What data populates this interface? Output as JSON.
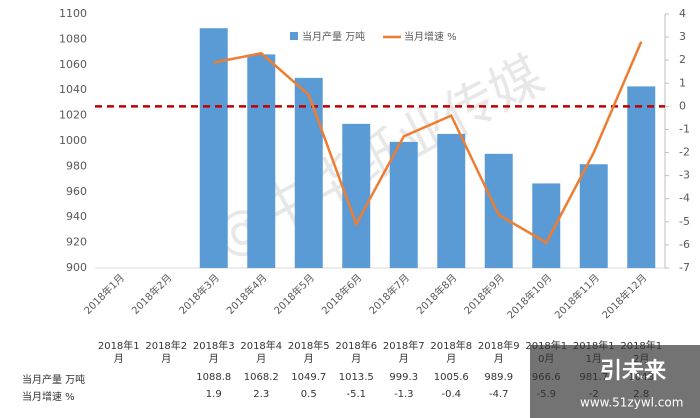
{
  "chart_data": {
    "type": "bar-line",
    "categories": [
      "2018年1月",
      "2018年2月",
      "2018年3月",
      "2018年4月",
      "2018年5月",
      "2018年6月",
      "2018年7月",
      "2018年8月",
      "2018年9月",
      "2018年10月",
      "2018年11月",
      "2018年12月"
    ],
    "series": [
      {
        "name": "当月产量 万吨",
        "color": "#5b9bd5",
        "values": [
          null,
          null,
          1088.8,
          1068.2,
          1049.7,
          1013.5,
          999.3,
          1005.6,
          989.9,
          966.6,
          981.7,
          1043.0
        ]
      },
      {
        "name": "当月增速 %",
        "color": "#ed7d31",
        "axis": "y2",
        "values": [
          null,
          null,
          1.9,
          2.3,
          0.5,
          -5.1,
          -1.3,
          -0.4,
          -4.7,
          -5.9,
          -2.0,
          2.8
        ]
      }
    ],
    "ylim": [
      900,
      1100
    ],
    "yticks": [
      900,
      920,
      940,
      960,
      980,
      1000,
      1020,
      1040,
      1060,
      1080,
      1100
    ],
    "y2lim": [
      -7,
      4
    ],
    "y2ticks": [
      -7,
      -6,
      -5,
      -4,
      -3,
      -2,
      -1,
      0,
      1,
      2,
      3,
      4
    ],
    "reference_line": {
      "axis": "y2",
      "value": 0,
      "color": "#c00000"
    },
    "legend": "top",
    "watermark": "@中华纸业传媒",
    "logo": {
      "text": "引未来",
      "url": "www.51zywl.com"
    }
  }
}
